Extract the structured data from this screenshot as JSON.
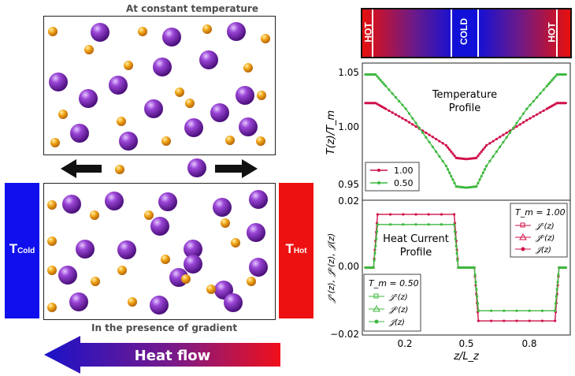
{
  "top_caption": "At constant temperature",
  "bottom_caption": "In the presence of gradient",
  "cold_reservoir": {
    "label_main": "T",
    "label_sub": "Cold",
    "color": "#1010ee"
  },
  "hot_reservoir": {
    "label_main": "T",
    "label_sub": "Hot",
    "color": "#ee1111"
  },
  "heat_flow": {
    "label": "Heat flow",
    "gradient_left": "#1a12c8",
    "gradient_right": "#f0101a"
  },
  "gradient_bar": {
    "hot_left": "HOT",
    "cold_center": "COLD",
    "hot_right": "HOT"
  },
  "particle_colors": {
    "large": "#7b2fb0",
    "small": "#e79a10"
  },
  "upper_plot": {
    "panel_title_line1": "Temperature",
    "panel_title_line2": "Profile",
    "ylabel": "T(z)/T_m",
    "yticks": [
      "1.05",
      "1.00",
      "0.95"
    ],
    "legend": [
      "1.00",
      "0.50"
    ]
  },
  "lower_plot": {
    "panel_title_line1": "Heat Current",
    "panel_title_line2": "Profile",
    "ylabel": "𝒥ˢ(z), 𝒥ᵖ(z), 𝒥(z)",
    "yticks": [
      "0.02",
      "0.00",
      "−0.02"
    ],
    "xticks": [
      "0.2",
      "0.5",
      "0.8"
    ],
    "xlabel": "z/L_z",
    "legend_red": {
      "title": "T_m = 1.00",
      "entries": [
        "𝒥ˢ(z)",
        "𝒥ᵖ(z)",
        "𝒥(z)"
      ]
    },
    "legend_green": {
      "title": "T_m = 0.50",
      "entries": [
        "𝒥ˢ(z)",
        "𝒥ᵖ(z)",
        "𝒥(z)"
      ]
    }
  },
  "chart_data": [
    {
      "type": "line",
      "xlabel": "",
      "ylabel": "T(z)/T_m",
      "xlim": [
        0,
        1
      ],
      "ylim": [
        0.94,
        1.06
      ],
      "series": [
        {
          "name": "1.00",
          "color": "#d0104a",
          "x": [
            0.0,
            0.05,
            0.1,
            0.2,
            0.3,
            0.4,
            0.45,
            0.5,
            0.55,
            0.6,
            0.7,
            0.8,
            0.9,
            0.95,
            1.0
          ],
          "y": [
            1.025,
            1.025,
            1.02,
            1.01,
            0.999,
            0.988,
            0.977,
            0.976,
            0.977,
            0.988,
            0.999,
            1.01,
            1.02,
            1.025,
            1.025
          ]
        },
        {
          "name": "0.50",
          "color": "#3fb83f",
          "x": [
            0.0,
            0.05,
            0.1,
            0.2,
            0.3,
            0.4,
            0.45,
            0.5,
            0.55,
            0.6,
            0.7,
            0.8,
            0.9,
            0.95,
            1.0
          ],
          "y": [
            1.05,
            1.05,
            1.04,
            1.02,
            0.995,
            0.97,
            0.952,
            0.951,
            0.952,
            0.97,
            0.995,
            1.02,
            1.04,
            1.05,
            1.05
          ]
        }
      ]
    },
    {
      "type": "line",
      "xlabel": "z/L_z",
      "ylabel": "𝒥ˢ(z), 𝒥ᵖ(z), 𝒥(z)",
      "xlim": [
        0,
        1
      ],
      "ylim": [
        -0.02,
        0.02
      ],
      "series": [
        {
          "name": "T_m = 1.00 𝒥(z)",
          "color": "#d0104a",
          "x": [
            0.0,
            0.04,
            0.06,
            0.44,
            0.46,
            0.5,
            0.54,
            0.56,
            0.94,
            0.96,
            1.0
          ],
          "y": [
            0.0,
            0.0,
            0.0158,
            0.0158,
            0.0,
            0.0,
            0.0,
            -0.0158,
            -0.0158,
            0.0,
            0.0
          ]
        },
        {
          "name": "T_m = 0.50 𝒥(z)",
          "color": "#3fb83f",
          "x": [
            0.0,
            0.04,
            0.06,
            0.44,
            0.46,
            0.5,
            0.54,
            0.56,
            0.94,
            0.96,
            1.0
          ],
          "y": [
            0.0,
            0.0,
            0.0128,
            0.0128,
            0.0,
            0.0,
            0.0,
            -0.0128,
            -0.0128,
            0.0,
            0.0
          ]
        }
      ]
    }
  ]
}
